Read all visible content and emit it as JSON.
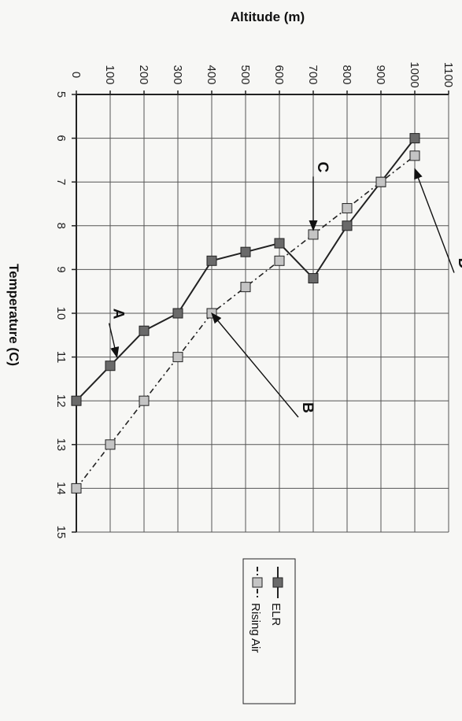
{
  "chart_data": {
    "type": "line",
    "xlabel": "Temperature (C)",
    "ylabel": "Altitude (m)",
    "xlim": [
      5,
      15
    ],
    "ylim": [
      0,
      1100
    ],
    "xticks": [
      "5",
      "6",
      "7",
      "8",
      "9",
      "10",
      "11",
      "12",
      "13",
      "14",
      "15"
    ],
    "yticks": [
      "0",
      "100",
      "200",
      "300",
      "400",
      "500",
      "600",
      "700",
      "800",
      "900",
      "1000",
      "1100"
    ],
    "grid": true,
    "legend_position": "bottom",
    "series": [
      {
        "name": "ELR",
        "style": "solid",
        "marker_color": "#6a6a6a",
        "points": [
          {
            "temp": 12,
            "alt": 0
          },
          {
            "temp": 11.2,
            "alt": 100
          },
          {
            "temp": 10.4,
            "alt": 200
          },
          {
            "temp": 10,
            "alt": 300
          },
          {
            "temp": 8.8,
            "alt": 400
          },
          {
            "temp": 8.6,
            "alt": 500
          },
          {
            "temp": 8.4,
            "alt": 600
          },
          {
            "temp": 9.2,
            "alt": 700
          },
          {
            "temp": 8,
            "alt": 800
          },
          {
            "temp": 7,
            "alt": 900
          },
          {
            "temp": 6,
            "alt": 1000
          }
        ]
      },
      {
        "name": "Rising Air",
        "style": "dash-dot",
        "marker_color": "#c4c4c4",
        "points": [
          {
            "temp": 14,
            "alt": 0
          },
          {
            "temp": 13,
            "alt": 100
          },
          {
            "temp": 12,
            "alt": 200
          },
          {
            "temp": 11,
            "alt": 300
          },
          {
            "temp": 10,
            "alt": 400
          },
          {
            "temp": 9.4,
            "alt": 500
          },
          {
            "temp": 8.8,
            "alt": 600
          },
          {
            "temp": 8.2,
            "alt": 700
          },
          {
            "temp": 7.6,
            "alt": 800
          },
          {
            "temp": 7,
            "alt": 900
          },
          {
            "temp": 6.4,
            "alt": 1000
          }
        ]
      }
    ],
    "annotations": [
      {
        "label": "A",
        "points_to": {
          "temp": 11,
          "alt": 120
        }
      },
      {
        "label": "B",
        "points_to": {
          "temp": 10,
          "alt": 400
        }
      },
      {
        "label": "C",
        "points_to": {
          "temp": 8.1,
          "alt": 700
        }
      },
      {
        "label": "D",
        "points_to": {
          "temp": 6.7,
          "alt": 1000
        }
      }
    ]
  }
}
